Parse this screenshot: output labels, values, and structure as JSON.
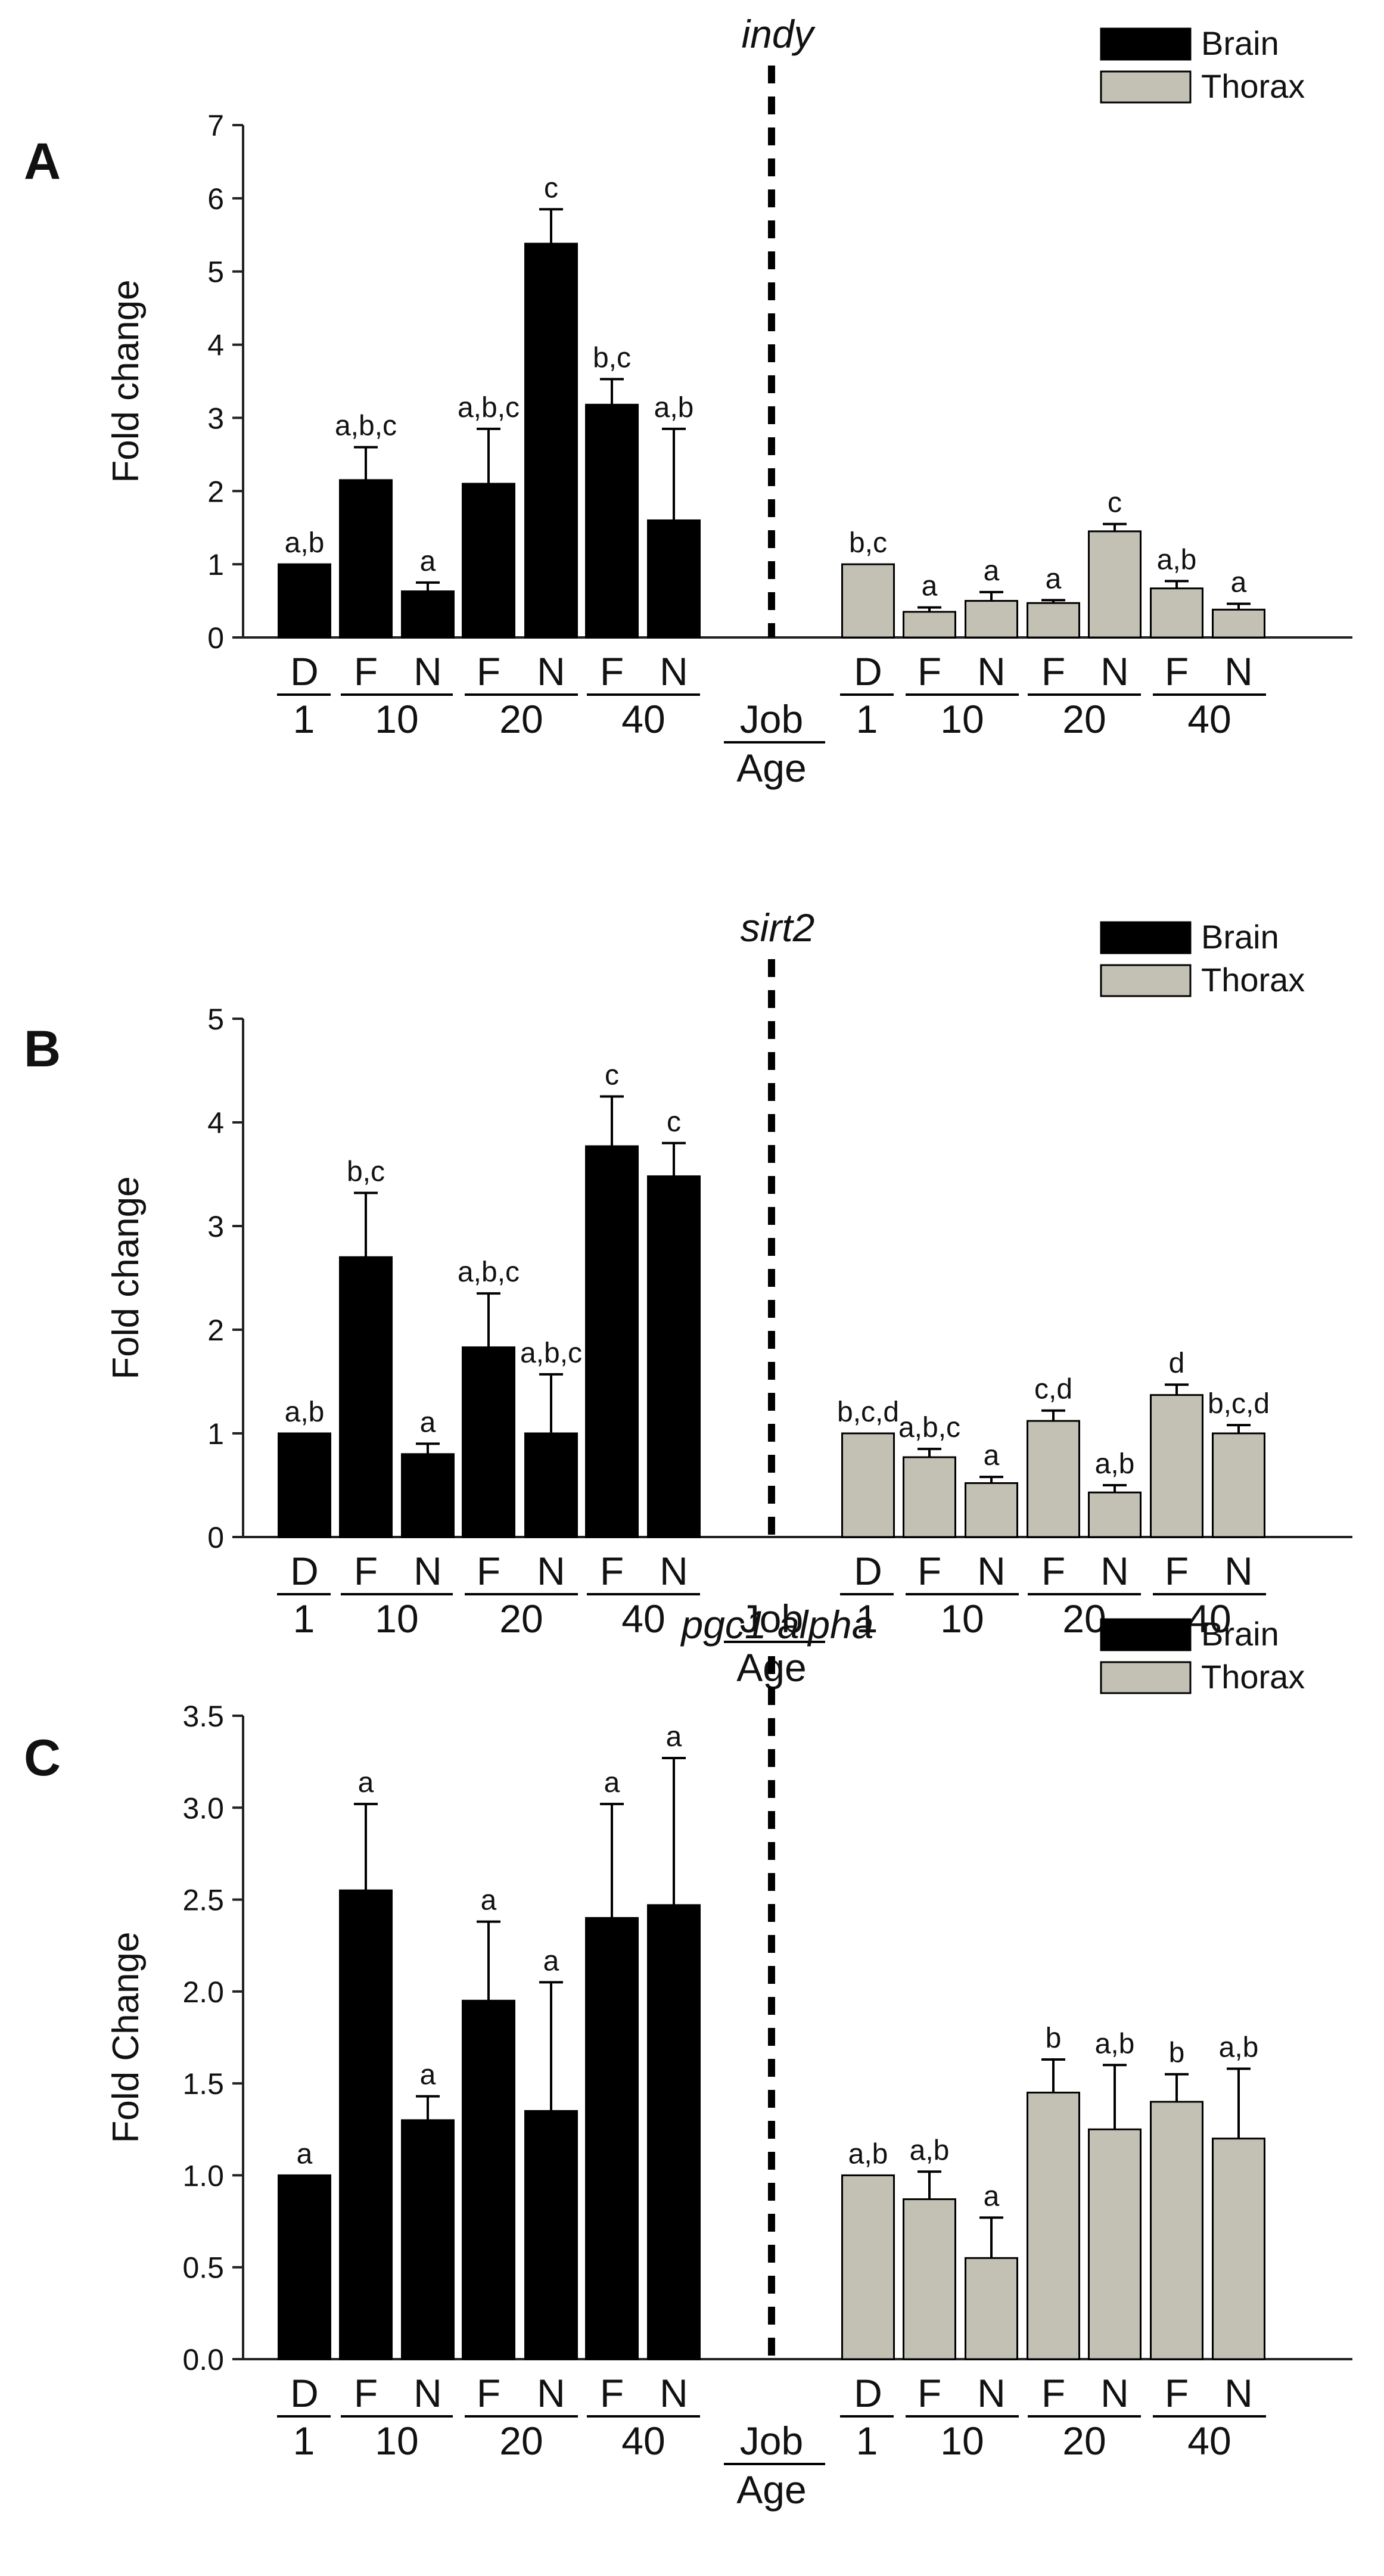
{
  "figure": {
    "colors": {
      "brain": "#000000",
      "thorax": "#c2c1b3",
      "axis": "#222222"
    },
    "x_axis": {
      "job_label": "Job",
      "age_label": "Age",
      "job_codes": [
        "D",
        "F",
        "N",
        "F",
        "N",
        "F",
        "N"
      ],
      "age_groups": [
        "1",
        "10",
        "20",
        "40"
      ]
    }
  },
  "chart_data": [
    {
      "type": "bar",
      "panel": "A",
      "title": "indy",
      "ylabel": "Fold change",
      "ylim": [
        0,
        7
      ],
      "yticks": [
        "0",
        "1",
        "2",
        "3",
        "4",
        "5",
        "6",
        "7"
      ],
      "categories": [
        "D 1",
        "F 10",
        "N 10",
        "F 20",
        "N 20",
        "F 40",
        "N 40"
      ],
      "series": [
        {
          "name": "Brain",
          "values": [
            1.0,
            2.15,
            0.63,
            2.1,
            5.38,
            3.18,
            1.6
          ],
          "errors": [
            0,
            0.45,
            0.12,
            0.75,
            0.47,
            0.35,
            1.25
          ],
          "letters": [
            "a,b",
            "a,b,c",
            "a",
            "a,b,c",
            "c",
            "b,c",
            "a,b"
          ]
        },
        {
          "name": "Thorax",
          "values": [
            1.0,
            0.35,
            0.5,
            0.47,
            1.45,
            0.67,
            0.38
          ],
          "errors": [
            0,
            0.06,
            0.12,
            0.04,
            0.1,
            0.1,
            0.08
          ],
          "letters": [
            "b,c",
            "a",
            "a",
            "a",
            "c",
            "a,b",
            "a"
          ]
        }
      ]
    },
    {
      "type": "bar",
      "panel": "B",
      "title": "sirt2",
      "ylabel": "Fold change",
      "ylim": [
        0,
        5
      ],
      "yticks": [
        "0",
        "1",
        "2",
        "3",
        "4",
        "5"
      ],
      "categories": [
        "D 1",
        "F 10",
        "N 10",
        "F 20",
        "N 20",
        "F 40",
        "N 40"
      ],
      "series": [
        {
          "name": "Brain",
          "values": [
            1.0,
            2.7,
            0.8,
            1.83,
            1.0,
            3.77,
            3.48
          ],
          "errors": [
            0,
            0.62,
            0.1,
            0.52,
            0.57,
            0.48,
            0.32
          ],
          "letters": [
            "a,b",
            "b,c",
            "a",
            "a,b,c",
            "a,b,c",
            "c",
            "c"
          ]
        },
        {
          "name": "Thorax",
          "values": [
            1.0,
            0.77,
            0.52,
            1.12,
            0.43,
            1.37,
            1.0
          ],
          "errors": [
            0,
            0.08,
            0.06,
            0.1,
            0.07,
            0.1,
            0.08
          ],
          "letters": [
            "b,c,d",
            "a,b,c",
            "a",
            "c,d",
            "a,b",
            "d",
            "b,c,d"
          ]
        }
      ]
    },
    {
      "type": "bar",
      "panel": "C",
      "title": "pgc1 alpha",
      "ylabel": "Fold Change",
      "ylim": [
        0,
        3.5
      ],
      "yticks": [
        "0.0",
        "0.5",
        "1.0",
        "1.5",
        "2.0",
        "2.5",
        "3.0",
        "3.5"
      ],
      "categories": [
        "D 1",
        "F 10",
        "N 10",
        "F 20",
        "N 20",
        "F 40",
        "N 40"
      ],
      "series": [
        {
          "name": "Brain",
          "values": [
            1.0,
            2.55,
            1.3,
            1.95,
            1.35,
            2.4,
            2.47
          ],
          "errors": [
            0,
            0.47,
            0.13,
            0.43,
            0.7,
            0.62,
            0.8
          ],
          "letters": [
            "a",
            "a",
            "a",
            "a",
            "a",
            "a",
            "a"
          ]
        },
        {
          "name": "Thorax",
          "values": [
            1.0,
            0.87,
            0.55,
            1.45,
            1.25,
            1.4,
            1.2
          ],
          "errors": [
            0,
            0.15,
            0.22,
            0.18,
            0.35,
            0.15,
            0.38
          ],
          "letters": [
            "a,b",
            "a,b",
            "a",
            "b",
            "a,b",
            "b",
            "a,b"
          ]
        }
      ]
    }
  ]
}
